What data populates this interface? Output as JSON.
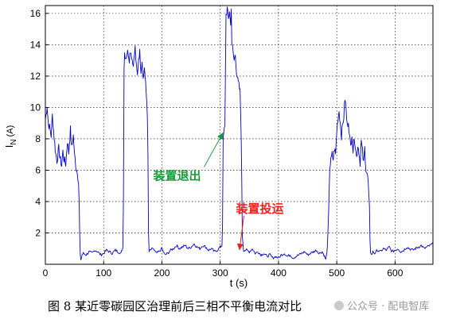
{
  "chart_data": {
    "type": "line",
    "xlabel": "t (s)",
    "ylabel": "I_N (A)",
    "ylabel_main": "I",
    "ylabel_sub": "N",
    "ylabel_unit": "(A)",
    "xlim": [
      0,
      665
    ],
    "ylim": [
      0,
      16.5
    ],
    "xticks": [
      0,
      100,
      200,
      300,
      400,
      500,
      600
    ],
    "yticks": [
      2,
      4,
      6,
      8,
      10,
      12,
      14,
      16
    ],
    "grid": true,
    "line_color": "#0000cc",
    "series": [
      {
        "x": [
          0,
          3,
          5,
          8,
          10,
          12,
          15,
          18,
          20,
          23,
          25,
          28,
          30,
          32,
          35,
          38,
          40,
          43,
          45,
          48,
          50,
          53,
          55,
          57,
          58,
          59,
          60,
          61,
          63,
          65,
          70,
          75,
          80,
          85,
          90,
          95,
          100,
          105,
          110,
          115,
          120,
          125,
          130,
          133,
          134,
          135,
          136,
          138,
          140,
          142,
          144,
          146,
          148,
          150,
          152,
          154,
          156,
          158,
          160,
          162,
          164,
          166,
          168,
          170,
          172,
          174,
          175,
          176,
          177,
          178,
          180,
          185,
          190,
          195,
          200,
          205,
          210,
          215,
          220,
          225,
          230,
          235,
          240,
          245,
          250,
          255,
          260,
          265,
          270,
          275,
          280,
          285,
          290,
          295,
          300,
          303,
          304,
          305,
          306,
          308,
          310,
          312,
          314,
          316,
          318,
          319,
          320,
          322,
          324,
          326,
          328,
          330,
          332,
          334,
          335,
          336,
          337,
          338,
          340,
          345,
          350,
          355,
          360,
          365,
          370,
          375,
          380,
          385,
          390,
          395,
          400,
          405,
          410,
          415,
          420,
          425,
          430,
          435,
          440,
          445,
          450,
          455,
          460,
          465,
          470,
          475,
          478,
          480,
          481,
          482,
          484,
          486,
          488,
          490,
          492,
          494,
          496,
          498,
          500,
          502,
          504,
          506,
          508,
          510,
          512,
          514,
          516,
          518,
          520,
          522,
          524,
          526,
          528,
          530,
          532,
          534,
          536,
          538,
          540,
          542,
          544,
          546,
          548,
          550,
          552,
          554,
          556,
          557,
          558,
          559,
          560,
          562,
          565,
          570,
          575,
          580,
          585,
          590,
          595,
          600,
          605,
          610,
          615,
          620,
          625,
          630,
          635,
          640,
          645,
          650,
          655,
          660,
          665
        ],
        "y": [
          9.2,
          10.1,
          9.0,
          8.6,
          8.2,
          9.5,
          8.1,
          7.0,
          6.6,
          7.4,
          6.8,
          6.3,
          7.2,
          6.7,
          6.4,
          7.9,
          7.1,
          8.6,
          7.4,
          8.2,
          7.0,
          6.1,
          5.9,
          5.2,
          3.8,
          1.8,
          0.5,
          0.3,
          0.6,
          0.7,
          0.6,
          0.8,
          0.7,
          0.9,
          0.8,
          0.6,
          0.7,
          0.9,
          0.8,
          0.7,
          0.9,
          0.8,
          0.7,
          1.1,
          4.0,
          12.6,
          13.5,
          13.2,
          13.4,
          13.6,
          13.1,
          13.7,
          13.3,
          12.8,
          13.0,
          13.8,
          12.6,
          12.0,
          13.2,
          13.5,
          12.4,
          13.0,
          11.8,
          12.6,
          11.4,
          10.4,
          9.5,
          7.0,
          2.0,
          0.8,
          0.9,
          1.0,
          0.7,
          0.8,
          1.0,
          0.6,
          0.7,
          0.9,
          1.0,
          1.2,
          1.0,
          1.1,
          1.2,
          1.0,
          1.1,
          1.3,
          1.1,
          1.0,
          1.2,
          1.1,
          0.9,
          1.0,
          0.8,
          0.9,
          1.1,
          1.2,
          2.5,
          7.8,
          8.3,
          8.8,
          15.9,
          16.3,
          15.6,
          16.2,
          15.2,
          16.5,
          14.1,
          13.5,
          13.0,
          13.4,
          12.3,
          11.7,
          11.4,
          11.0,
          9.8,
          8.0,
          5.3,
          1.8,
          0.9,
          0.9,
          0.8,
          1.0,
          0.7,
          0.8,
          0.6,
          0.7,
          0.5,
          0.6,
          0.4,
          0.5,
          0.4,
          0.6,
          0.7,
          0.5,
          0.6,
          0.4,
          0.5,
          0.6,
          0.7,
          0.8,
          0.6,
          0.7,
          0.8,
          0.9,
          0.7,
          0.8,
          0.6,
          0.4,
          0.3,
          0.5,
          1.1,
          3.3,
          6.2,
          6.6,
          7.0,
          6.7,
          7.4,
          7.0,
          8.5,
          9.3,
          9.8,
          9.0,
          8.2,
          8.9,
          9.4,
          10.6,
          9.8,
          8.8,
          9.2,
          8.1,
          7.5,
          8.4,
          7.2,
          8.2,
          7.5,
          6.8,
          7.6,
          7.2,
          6.5,
          7.8,
          7.2,
          6.4,
          7.4,
          6.1,
          5.8,
          5.2,
          3.5,
          1.5,
          0.8,
          0.7,
          0.6,
          0.8,
          0.7,
          0.9,
          0.8,
          1.0,
          0.9,
          1.1,
          0.8,
          0.9,
          1.0,
          0.8,
          0.9,
          1.1,
          1.0,
          0.9,
          1.0,
          1.1,
          1.2,
          1.0,
          1.1,
          1.2,
          1.3
        ]
      }
    ],
    "annotations": [
      {
        "text": "装置退出",
        "color": "#1a9a3a",
        "x": 226,
        "y": 5.4,
        "arrow_to": [
          305,
          8.4
        ]
      },
      {
        "text": "装置投运",
        "color": "#e8241a",
        "x": 368,
        "y": 3.3,
        "arrow_to": [
          333,
          0.9
        ]
      }
    ]
  },
  "caption": "图 8  某近零碳园区治理前后三相不平衡电流对比",
  "watermark": "公众号 · 配电智库"
}
